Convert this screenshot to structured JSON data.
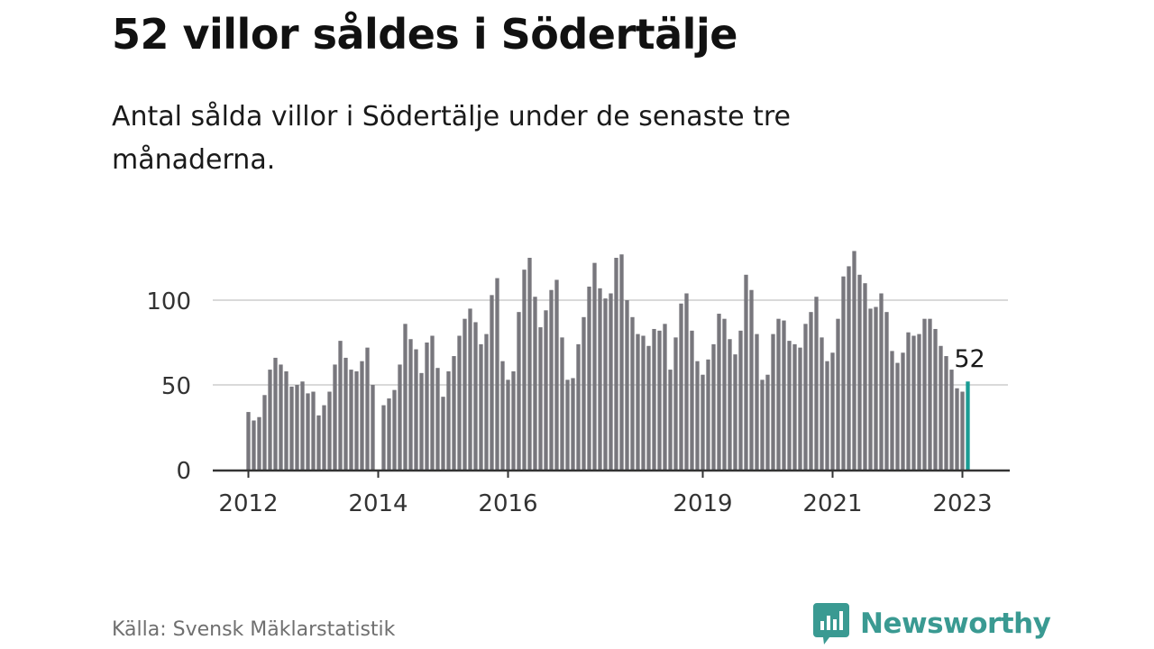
{
  "header": {
    "title": "52 villor såldes i Södertälje",
    "subtitle": "Antal sålda villor i Södertälje under de senaste tre månaderna."
  },
  "footer": {
    "source": "Källa: Svensk Mäklarstatistik",
    "brand": "Newsworthy",
    "brand_icon": "bar-chart-speech-bubble-icon"
  },
  "colors": {
    "bar": "#78777d",
    "highlight": "#1a9c94",
    "gridline": "#d9d9d9",
    "axis": "#333333",
    "brand": "#3a9a92"
  },
  "chart_data": {
    "type": "bar",
    "ylim": [
      0,
      135
    ],
    "yticks": [
      0,
      50,
      100
    ],
    "xticks": [
      "2012",
      "2014",
      "2016",
      "2019",
      "2021",
      "2023"
    ],
    "grid": true,
    "highlight_label": "52",
    "series": [
      {
        "values": [
          34,
          29,
          31,
          44,
          59,
          66,
          62,
          58,
          49,
          50,
          52,
          45,
          46,
          32,
          38,
          46,
          62,
          76,
          66,
          59,
          58,
          64,
          72,
          50,
          null,
          38,
          42,
          47,
          62,
          86,
          77,
          71,
          57,
          75,
          79,
          60,
          43,
          58,
          67,
          79,
          89,
          95,
          87,
          74,
          80,
          103,
          113,
          64,
          53,
          58,
          93,
          118,
          125,
          102,
          84,
          94,
          106,
          112,
          78,
          53,
          54,
          74,
          90,
          108,
          122,
          107,
          101,
          104,
          125,
          127,
          100,
          90,
          80,
          79,
          73,
          83,
          82,
          86,
          59,
          78,
          98,
          104,
          82,
          64,
          56,
          65,
          74,
          92,
          89,
          77,
          68,
          82,
          115,
          106,
          80,
          53,
          56,
          80,
          89,
          88,
          76,
          74,
          72,
          86,
          93,
          102,
          78,
          64,
          69,
          89,
          114,
          120,
          129,
          115,
          110,
          95,
          96,
          104,
          93,
          70,
          63,
          69,
          81,
          79,
          80,
          89,
          89,
          83,
          73,
          67,
          59,
          48,
          46,
          52
        ]
      }
    ]
  }
}
